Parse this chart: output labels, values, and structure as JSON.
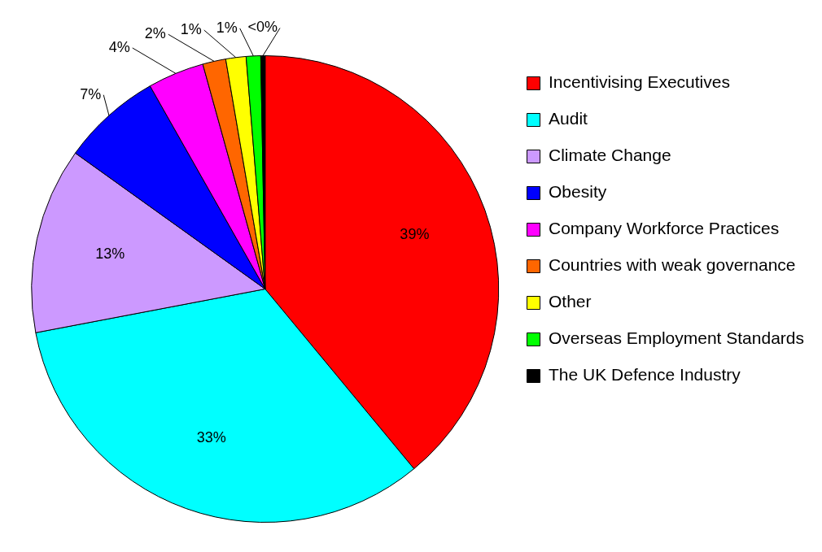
{
  "chart_data": {
    "type": "pie",
    "categories": [
      "Incentivising Executives",
      "Audit",
      "Climate Change",
      "Obesity",
      "Company Workforce Practices",
      "Countries with weak governance",
      "Other",
      "Overseas Employment Standards",
      "The UK Defence Industry"
    ],
    "values": [
      39,
      33,
      12.9,
      6.9,
      3.9,
      1.6,
      1.4,
      1.0,
      0.3
    ],
    "value_labels": [
      "39%",
      "33%",
      "13%",
      "7%",
      "4%",
      "2%",
      "1%",
      "1%",
      "<0%"
    ],
    "colors": [
      "#ff0000",
      "#00ffff",
      "#cc99ff",
      "#0000ff",
      "#ff00ff",
      "#ff6600",
      "#ffff00",
      "#00ff00",
      "#000000"
    ],
    "legend": "right"
  }
}
